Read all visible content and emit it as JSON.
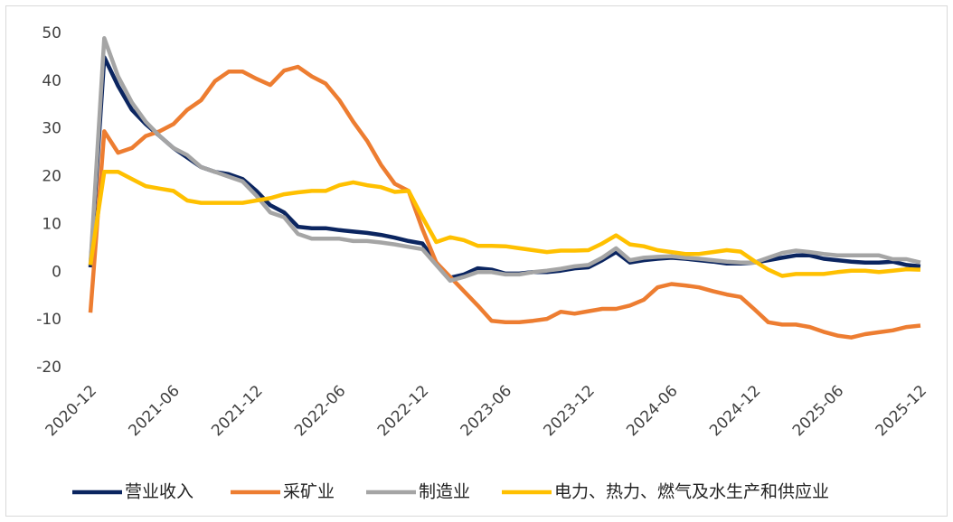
{
  "chart_data": {
    "type": "line",
    "categories": [
      "2020-12",
      null,
      null,
      null,
      null,
      null,
      "2021-06",
      null,
      null,
      null,
      null,
      null,
      "2021-12",
      null,
      null,
      null,
      null,
      null,
      "2022-06",
      null,
      null,
      null,
      null,
      null,
      "2022-12",
      null,
      null,
      null,
      null,
      null,
      "2023-06",
      null,
      null,
      null,
      null,
      null,
      "2023-12",
      null,
      null,
      null,
      null,
      null,
      "2024-06",
      null,
      null,
      null,
      null,
      null,
      "2024-12",
      null,
      null,
      null,
      null,
      null,
      "2025-06",
      null,
      null,
      null,
      null,
      null,
      "2025-12"
    ],
    "series": [
      {
        "name": "营业收入",
        "color": "#0b2560",
        "values": [
          1,
          45,
          39,
          34,
          31,
          28.5,
          26,
          24,
          22,
          21,
          20.5,
          19.5,
          17,
          14,
          12.5,
          9.5,
          9.2,
          9.2,
          8.8,
          8.5,
          8.2,
          7.8,
          7.2,
          6.5,
          6,
          2,
          -1.2,
          -0.5,
          0.8,
          0.5,
          -0.3,
          -0.3,
          0,
          0,
          0.3,
          0.8,
          1,
          2.5,
          4.2,
          2,
          2.5,
          2.8,
          3,
          2.8,
          2.5,
          2.2,
          1.8,
          1.8,
          2,
          2.5,
          3,
          3.5,
          3.5,
          2.8,
          2.5,
          2.2,
          2,
          2,
          2.2,
          1.5,
          1.2
        ]
      },
      {
        "name": "采矿业",
        "color": "#ed7d31",
        "values": [
          -8.5,
          29.5,
          25,
          26,
          28.5,
          29.5,
          31,
          34,
          36,
          40,
          42,
          42,
          40.5,
          39.2,
          42.2,
          43,
          41,
          39.5,
          36,
          31.5,
          27.5,
          22.5,
          18.5,
          17,
          9,
          2,
          -1,
          -4,
          -7,
          -10.2,
          -10.5,
          -10.5,
          -10.2,
          -9.8,
          -8.3,
          -8.7,
          -8.2,
          -7.7,
          -7.7,
          -7,
          -5.8,
          -3.2,
          -2.5,
          -2.8,
          -3.2,
          -4,
          -4.7,
          -5.2,
          -7.8,
          -10.5,
          -11,
          -11,
          -11.5,
          -12.5,
          -13.3,
          -13.7,
          -13,
          -12.6,
          -12.2,
          -11.5,
          -11.2
        ]
      },
      {
        "name": "制造业",
        "color": "#a5a5a5",
        "values": [
          1.5,
          49,
          41,
          35.5,
          31.5,
          28.5,
          26,
          24.5,
          22,
          21,
          20,
          19,
          16,
          12.5,
          11.5,
          8,
          7,
          7,
          7,
          6.5,
          6.5,
          6.2,
          5.8,
          5.3,
          4.8,
          1.5,
          -1.8,
          -1,
          0,
          0,
          -0.5,
          -0.5,
          0,
          0.3,
          0.7,
          1.2,
          1.5,
          3,
          5,
          2.5,
          3,
          3.2,
          3.3,
          3,
          2.8,
          2.5,
          2.2,
          2,
          2,
          3,
          4,
          4.5,
          4.2,
          3.8,
          3.5,
          3.5,
          3.5,
          3.5,
          2.7,
          2.7,
          2
        ]
      },
      {
        "name": "电力、热力、燃气及水生产和供应业",
        "color": "#ffc000",
        "values": [
          1.5,
          21,
          21,
          19.5,
          18,
          17.5,
          17,
          15,
          14.5,
          14.5,
          14.5,
          14.5,
          15,
          15.5,
          16.3,
          16.7,
          17,
          17,
          18.2,
          18.8,
          18.2,
          17.8,
          16.8,
          17,
          11.5,
          6.3,
          7.3,
          6.7,
          5.5,
          5.5,
          5.4,
          5,
          4.6,
          4.2,
          4.5,
          4.5,
          4.6,
          6,
          7.7,
          5.8,
          5.4,
          4.6,
          4.2,
          3.8,
          3.8,
          4.2,
          4.6,
          4.3,
          2.3,
          0.5,
          -0.8,
          -0.4,
          -0.4,
          -0.4,
          0,
          0.3,
          0.3,
          0,
          0.3,
          0.6,
          0.5
        ]
      }
    ],
    "ylim": [
      -20,
      50
    ],
    "yticks": [
      -20,
      -10,
      0,
      10,
      20,
      30,
      40,
      50
    ],
    "grid": false,
    "legend": "bottom"
  }
}
